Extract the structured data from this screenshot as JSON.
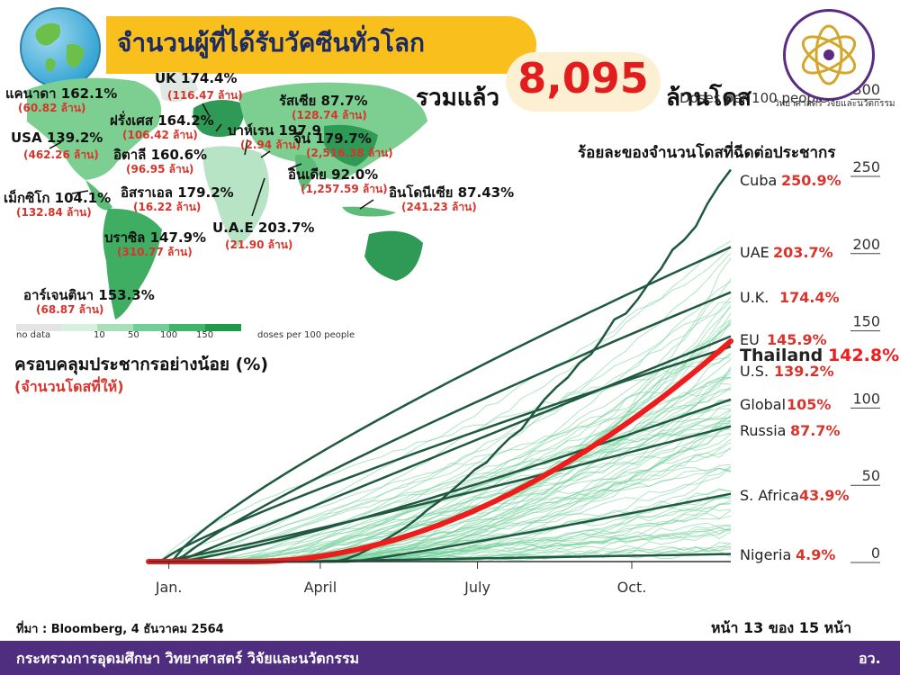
{
  "header": {
    "title": "จำนวนผู้ที่ได้รับวัคซีนทั่วโลก",
    "total_label": "รวมแล้ว",
    "total_value": "8,095",
    "total_unit": "ล้านโดส",
    "doses_per_100": "Doses per 100 people",
    "ministry_small": "วิทยาศาสตร์ วิจัยและนวัตกรรม"
  },
  "map": {
    "legend": {
      "ticks": [
        "no data",
        "10",
        "50",
        "100",
        "150",
        "doses per 100 people"
      ]
    },
    "labels": [
      {
        "name": "UK 174.4%",
        "sub": "(116.47 ล้าน)"
      },
      {
        "name": "แคนาดา 162.1%",
        "sub": "(60.82 ล้าน)"
      },
      {
        "name": "รัสเซีย 87.7%",
        "sub": "(128.74 ล้าน)"
      },
      {
        "name": "ฝรั่งเศส 164.2%",
        "sub": "(106.42 ล้าน)"
      },
      {
        "name": "บาห์เรน 197.9",
        "sub": "(2.94 ล้าน)"
      },
      {
        "name": "จีน 179.7%",
        "sub": "(2,516.38 ล้าน)"
      },
      {
        "name": "USA 139.2%",
        "sub": "(462.26 ล้าน)"
      },
      {
        "name": "อิตาลี 160.6%",
        "sub": "(96.95 ล้าน)"
      },
      {
        "name": "อินเดีย 92.0%",
        "sub": "(1,257.59 ล้าน)"
      },
      {
        "name": "อิสราเอล 179.2%",
        "sub": "(16.22 ล้าน)"
      },
      {
        "name": "อินโดนีเซีย 87.43%",
        "sub": "(241.23 ล้าน)"
      },
      {
        "name": "เม็กซิโก 104.1%",
        "sub": "(132.84 ล้าน)"
      },
      {
        "name": "U.A.E 203.7%",
        "sub": "(21.90 ล้าน)"
      },
      {
        "name": "บราซิล 147.9%",
        "sub": "(310.77 ล้าน)"
      },
      {
        "name": "อาร์เจนตินา 153.3%",
        "sub": "(68.87 ล้าน)"
      }
    ],
    "coverage_label": "ครอบคลุมประชากรอย่างน้อย (%)",
    "coverage_sub": "(จำนวนโดสที่ให้)"
  },
  "chart_subtitle": "ร้อยละของจำนวนโดสที่ฉีดต่อประชากร",
  "chart_data": {
    "type": "line",
    "x_ticks": [
      "Jan.",
      "April",
      "July",
      "Oct."
    ],
    "y_ticks": [
      0,
      50,
      100,
      150,
      200,
      250,
      300
    ],
    "ylim": [
      0,
      300
    ],
    "ylabel": "Doses per 100 people",
    "colors": {
      "highlight": "#ef1c1c",
      "named": "#1f5a40",
      "background": "#6fcf97",
      "value_text": "#d9342b"
    },
    "series": [
      {
        "name": "Cuba",
        "label": "250.9%",
        "final": 250.9
      },
      {
        "name": "UAE",
        "label": "203.7%",
        "final": 203.7
      },
      {
        "name": "U.K.",
        "label": "174.4%",
        "final": 174.4
      },
      {
        "name": "EU",
        "label": "145.9%",
        "final": 145.9
      },
      {
        "name": "Thailand",
        "label": "142.8%",
        "final": 142.8,
        "highlight": true
      },
      {
        "name": "U.S.",
        "label": "139.2%",
        "final": 139.2
      },
      {
        "name": "Global",
        "label": "105%",
        "final": 105
      },
      {
        "name": "Russia",
        "label": "87.7%",
        "final": 87.7
      },
      {
        "name": "S. Africa",
        "label": "43.9%",
        "final": 43.9
      },
      {
        "name": "Nigeria",
        "label": "4.9%",
        "final": 4.9
      }
    ]
  },
  "footer": {
    "source": "ที่มา : Bloomberg, 4 ธันวาคม 2564",
    "page": "หน้า 13 ของ 15 หน้า",
    "ministry": "กระทรวงการอุดมศึกษา วิทยาศาสตร์ วิจัยและนวัตกรรม",
    "abbr": "อว."
  }
}
